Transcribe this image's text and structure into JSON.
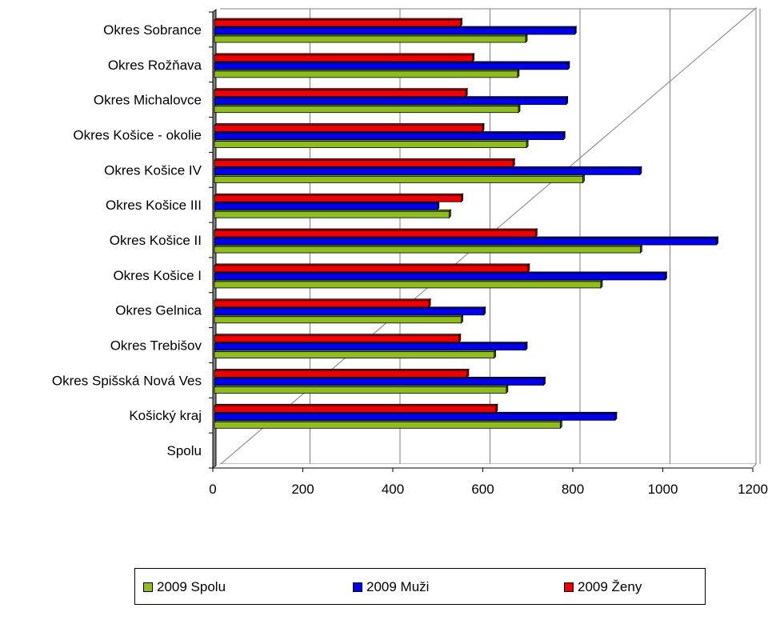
{
  "chart_data": {
    "type": "bar",
    "orientation": "horizontal",
    "categories": [
      "Spolu",
      "Košický kraj",
      "Okres Spišská Nová Ves",
      "Okres Trebišov",
      "Okres Gelnica",
      "Okres Košice I",
      "Okres Košice II",
      "Okres Košice III",
      "Okres Košice IV",
      "Okres Košice - okolie",
      "Okres Michalovce",
      "Okres Rožňava",
      "Okres Sobrance"
    ],
    "series": [
      {
        "name": "2009 Spolu",
        "color": "#8fbc1e",
        "values": [
          null,
          765,
          645,
          618,
          545,
          855,
          943,
          518,
          815,
          690,
          672,
          670,
          688
        ]
      },
      {
        "name": "2009 Muži",
        "color": "#0000ee",
        "values": [
          null,
          887,
          728,
          688,
          595,
          998,
          1112,
          492,
          942,
          772,
          778,
          782,
          797
        ]
      },
      {
        "name": "2009 Ženy",
        "color": "#ee0000",
        "values": [
          null,
          622,
          558,
          540,
          473,
          693,
          710,
          545,
          660,
          592,
          555,
          570,
          543
        ]
      }
    ],
    "xlim": [
      0,
      1200
    ],
    "xticks": [
      "0",
      "200",
      "400",
      "600",
      "800",
      "1000",
      "1200"
    ],
    "grid": "vertical",
    "legend_position": "bottom",
    "title": "",
    "xlabel": "",
    "ylabel": ""
  }
}
